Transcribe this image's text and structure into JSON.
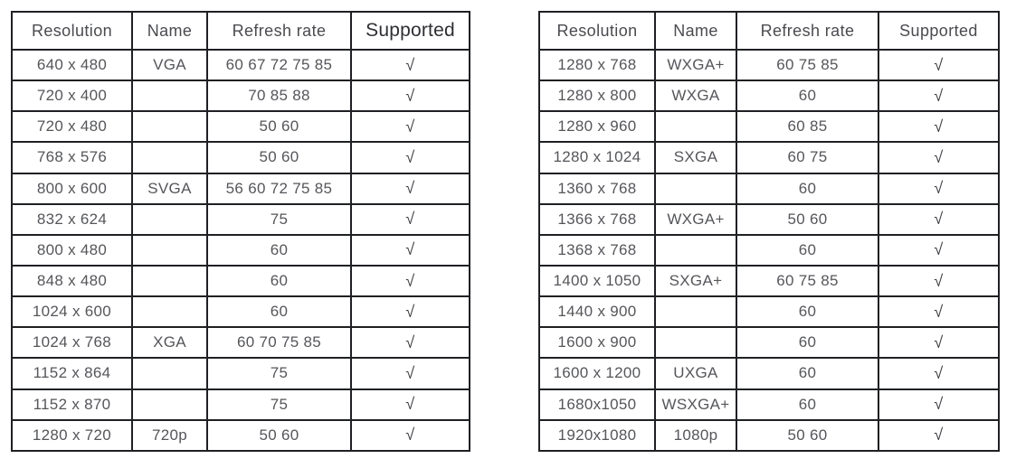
{
  "colors": {
    "background": "#ffffff",
    "border": "#1f2023",
    "cell_text": "#55565a",
    "header_text": "#4a4b4f"
  },
  "supported_mark": "√",
  "tables": [
    {
      "name": "standard-resolutions",
      "headers": [
        "Resolution",
        "Name",
        "Refresh rate",
        "Supported"
      ],
      "rows": [
        [
          "640 x 480",
          "VGA",
          "60 67 72 75 85",
          "√"
        ],
        [
          "720 x 400",
          "",
          "70 85 88",
          "√"
        ],
        [
          "720 x 480",
          "",
          "50 60",
          "√"
        ],
        [
          "768 x 576",
          "",
          "50 60",
          "√"
        ],
        [
          "800 x 600",
          "SVGA",
          "56 60 72 75 85",
          "√"
        ],
        [
          "832 x 624",
          "",
          "75",
          "√"
        ],
        [
          "800 x 480",
          "",
          "60",
          "√"
        ],
        [
          "848 x 480",
          "",
          "60",
          "√"
        ],
        [
          "1024 x 600",
          "",
          "60",
          "√"
        ],
        [
          "1024 x 768",
          "XGA",
          "60 70 75 85",
          "√"
        ],
        [
          "1152 x 864",
          "",
          "75",
          "√"
        ],
        [
          "1152 x 870",
          "",
          "75",
          "√"
        ],
        [
          "1280 x 720",
          "720p",
          "50 60",
          "√"
        ]
      ]
    },
    {
      "name": "wide-resolutions",
      "headers": [
        "Resolution",
        "Name",
        "Refresh rate",
        "Supported"
      ],
      "rows": [
        [
          "1280 x 768",
          "WXGA+",
          "60 75 85",
          "√"
        ],
        [
          "1280 x 800",
          "WXGA",
          "60",
          "√"
        ],
        [
          "1280 x 960",
          "",
          "60 85",
          "√"
        ],
        [
          "1280 x 1024",
          "SXGA",
          "60 75",
          "√"
        ],
        [
          "1360 x 768",
          "",
          "60",
          "√"
        ],
        [
          "1366 x 768",
          "WXGA+",
          "50 60",
          "√"
        ],
        [
          "1368 x 768",
          "",
          "60",
          "√"
        ],
        [
          "1400 x 1050",
          "SXGA+",
          "60 75 85",
          "√"
        ],
        [
          "1440 x 900",
          "",
          "60",
          "√"
        ],
        [
          "1600 x 900",
          "",
          "60",
          "√"
        ],
        [
          "1600 x 1200",
          "UXGA",
          "60",
          "√"
        ],
        [
          "1680x1050",
          "WSXGA+",
          "60",
          "√"
        ],
        [
          "1920x1080",
          "1080p",
          "50 60",
          "√"
        ]
      ]
    }
  ]
}
